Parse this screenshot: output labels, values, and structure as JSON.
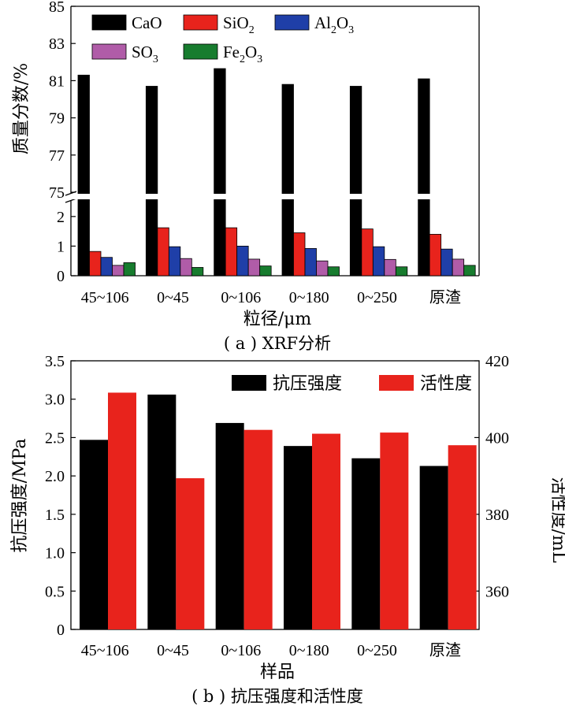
{
  "chart_data": [
    {
      "type": "bar",
      "caption": "( a ) XRF分析",
      "xlabel": "粒径/μm",
      "ylabel": "质量分数/%",
      "broken_axis": true,
      "yticks_lower": [
        "0",
        "1",
        "2"
      ],
      "yticks_upper": [
        "75",
        "77",
        "79",
        "81",
        "83",
        "85"
      ],
      "ylim_lower": [
        0,
        2.9
      ],
      "ylim_upper": [
        75,
        85
      ],
      "categories": [
        "45~106",
        "0~45",
        "0~106",
        "0~180",
        "0~250",
        "原渣"
      ],
      "series": [
        {
          "name": "CaO",
          "legend_main": "CaO",
          "legend_sub": "",
          "legend_tail": "",
          "color": "#000000",
          "values": [
            81.3,
            80.7,
            81.65,
            80.8,
            80.7,
            81.1
          ]
        },
        {
          "name": "SiO2",
          "legend_main": "SiO",
          "legend_sub": "2",
          "legend_tail": "",
          "color": "#e8231c",
          "values": [
            0.82,
            1.62,
            1.62,
            1.45,
            1.58,
            1.4
          ]
        },
        {
          "name": "Al2O3",
          "legend_main": "Al",
          "legend_sub": "2",
          "legend_tail": "O",
          "legend_sub2": "3",
          "color": "#1f3fa8",
          "values": [
            0.62,
            0.98,
            1.0,
            0.92,
            0.98,
            0.9
          ]
        },
        {
          "name": "SO3",
          "legend_main": "SO",
          "legend_sub": "3",
          "legend_tail": "",
          "color": "#b05ca8",
          "values": [
            0.35,
            0.58,
            0.56,
            0.5,
            0.55,
            0.56
          ]
        },
        {
          "name": "Fe2O3",
          "legend_main": "Fe",
          "legend_sub": "2",
          "legend_tail": "O",
          "legend_sub2": "3",
          "color": "#177c2e",
          "values": [
            0.44,
            0.28,
            0.33,
            0.3,
            0.3,
            0.35
          ]
        }
      ]
    },
    {
      "type": "bar",
      "caption": "( b ) 抗压强度和活性度",
      "xlabel": "样品",
      "ylabel_left": "抗压强度/MPa",
      "ylabel_right": "活性度/mL",
      "ylim_left": [
        0,
        3.5
      ],
      "ylim_right": [
        350,
        420
      ],
      "yticks_left": [
        "0",
        "0.5",
        "1.0",
        "1.5",
        "2.0",
        "2.5",
        "3.0",
        "3.5"
      ],
      "yticks_right": [
        "360",
        "380",
        "400",
        "420"
      ],
      "categories": [
        "45~106",
        "0~45",
        "0~106",
        "0~180",
        "0~250",
        "原渣"
      ],
      "series": [
        {
          "name": "抗压强度",
          "axis": "left",
          "color": "#000000",
          "values": [
            2.47,
            3.06,
            2.69,
            2.39,
            2.23,
            2.13
          ]
        },
        {
          "name": "活性度",
          "axis": "right",
          "color": "#e8231c",
          "values": [
            411.7,
            389.4,
            402,
            401,
            401.3,
            398
          ]
        }
      ]
    }
  ]
}
